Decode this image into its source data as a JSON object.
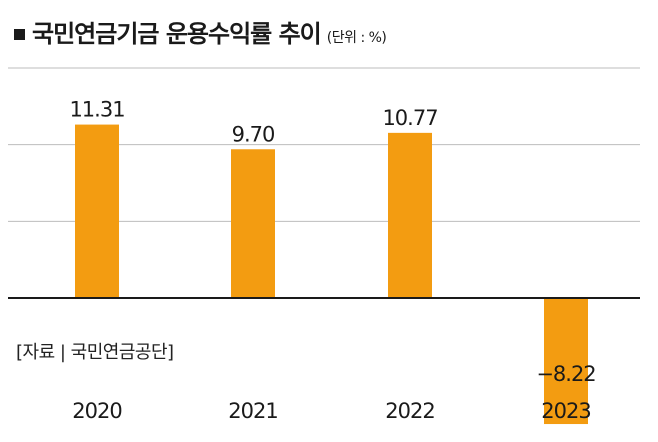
{
  "title": {
    "main": "국민연금기금 운용수익률 추이",
    "unit": "(단위 : %)"
  },
  "source": "[자료 | 국민연금공단]",
  "colors": {
    "bar": "#f39c11",
    "grid": "#bdbdbd",
    "baseline": "#1a1a1a"
  },
  "chart_data": {
    "type": "bar",
    "title": "국민연금기금 운용수익률 추이",
    "unit": "%",
    "categories": [
      "2020",
      "2021",
      "2022",
      "2023"
    ],
    "values": [
      11.31,
      9.7,
      10.77,
      -8.22
    ],
    "value_labels": [
      "11.31",
      "9.70",
      "10.77",
      "−8.22"
    ],
    "xlabel": "",
    "ylabel": "",
    "ylim": [
      -10,
      15
    ],
    "grid": true,
    "gridlines": [
      5,
      10,
      15
    ],
    "source": "[자료 | 국민연금공단]"
  }
}
